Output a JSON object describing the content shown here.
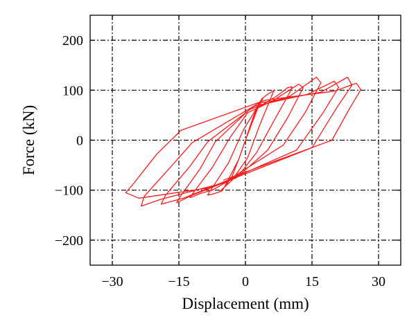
{
  "chart_data": {
    "type": "line",
    "title": "",
    "xlabel": "Displacement (mm)",
    "ylabel": "Force (kN)",
    "xlim": [
      -35,
      35
    ],
    "ylim": [
      -250,
      250
    ],
    "xticks": [
      -30,
      -15,
      0,
      15,
      30
    ],
    "yticks": [
      -200,
      -100,
      0,
      100,
      200
    ],
    "xtick_labels": [
      "−30",
      "−15",
      "0",
      "15",
      "30"
    ],
    "ytick_labels": [
      "−200",
      "−100",
      "0",
      "100",
      "200"
    ],
    "grid": true,
    "grid_style": "dash-dot",
    "colors": {
      "series": "#ff1a1a",
      "grid": "#000000",
      "axes": "#000000"
    },
    "series": [
      {
        "points": [
          [
            0,
            0
          ],
          [
            1.5,
            40
          ],
          [
            2.6,
            66
          ],
          [
            3.5,
            80
          ],
          [
            3.8,
            84
          ],
          [
            1.5,
            40
          ],
          [
            0,
            0
          ],
          [
            -1.6,
            -40
          ],
          [
            -3,
            -72
          ],
          [
            -4.2,
            -88
          ],
          [
            -5.5,
            -103
          ],
          [
            -4.8,
            -95
          ],
          [
            -1.5,
            -38
          ],
          [
            0,
            0
          ],
          [
            2.7,
            62
          ],
          [
            4,
            85
          ],
          [
            5,
            92
          ],
          [
            6.5,
            100
          ],
          [
            6.2,
            95
          ],
          [
            3.2,
            30
          ],
          [
            0.5,
            -35
          ],
          [
            -3,
            -80
          ],
          [
            -6,
            -104
          ],
          [
            -7.5,
            -108
          ],
          [
            -8.5,
            -110
          ],
          [
            -8.2,
            -105
          ],
          [
            -3.8,
            -45
          ],
          [
            -0.5,
            20
          ],
          [
            2.5,
            64
          ],
          [
            7,
            88
          ],
          [
            9.5,
            105
          ],
          [
            10.5,
            107
          ],
          [
            10,
            96
          ],
          [
            6.5,
            40
          ],
          [
            2.5,
            -25
          ],
          [
            -1.5,
            -70
          ],
          [
            -7.5,
            -100
          ],
          [
            -10,
            -106
          ],
          [
            -12.5,
            -115
          ],
          [
            -12,
            -108
          ],
          [
            -7.5,
            -55
          ],
          [
            -3.5,
            5
          ],
          [
            0.5,
            55
          ],
          [
            6,
            78
          ],
          [
            12,
            112
          ],
          [
            13,
            105
          ],
          [
            9.5,
            45
          ],
          [
            5,
            -20
          ],
          [
            -2,
            -75
          ],
          [
            -12,
            -110
          ],
          [
            -15.5,
            -125
          ],
          [
            -14.8,
            -114
          ],
          [
            -10.2,
            -57
          ],
          [
            -6.8,
            -3
          ],
          [
            1,
            62
          ],
          [
            10,
            88
          ],
          [
            16,
            126
          ],
          [
            17,
            115
          ],
          [
            13.5,
            56
          ],
          [
            8.5,
            -10
          ],
          [
            -4,
            -80
          ],
          [
            -14,
            -116
          ],
          [
            -19,
            -128
          ],
          [
            -18,
            -110
          ],
          [
            -12.5,
            -52
          ],
          [
            -8.5,
            -3
          ],
          [
            2,
            68
          ],
          [
            14,
            92
          ],
          [
            20,
            118
          ],
          [
            21,
            106
          ],
          [
            17.5,
            55
          ],
          [
            11.5,
            -20
          ],
          [
            -6,
            -88
          ],
          [
            -19,
            -118
          ],
          [
            -23.5,
            -132
          ],
          [
            -22.8,
            -112
          ],
          [
            -16,
            -45
          ],
          [
            -12,
            -5
          ],
          [
            3,
            74
          ],
          [
            17,
            96
          ],
          [
            23,
            126
          ],
          [
            24,
            110
          ],
          [
            20.5,
            64
          ],
          [
            15,
            -15
          ],
          [
            -8,
            -95
          ],
          [
            -24,
            -116
          ],
          [
            -27,
            -105
          ],
          [
            -25.5,
            -90
          ],
          [
            -20,
            -28
          ],
          [
            -14.5,
            20
          ],
          [
            4.5,
            80
          ],
          [
            20,
            98
          ],
          [
            25,
            114
          ],
          [
            26,
            101
          ],
          [
            23.5,
            64
          ],
          [
            19.5,
            0
          ],
          [
            -5,
            -80
          ]
        ]
      }
    ]
  }
}
